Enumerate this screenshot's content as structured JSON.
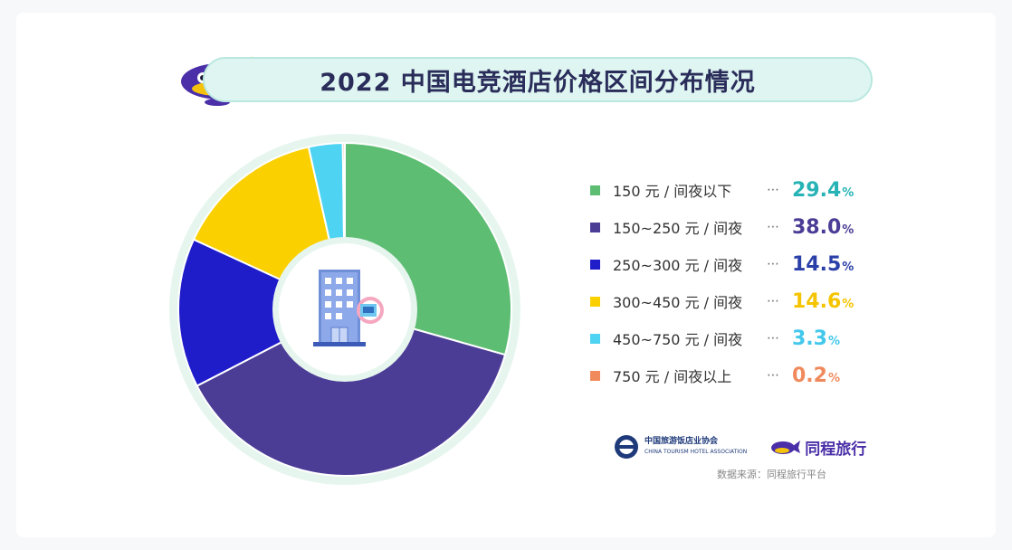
{
  "chart_data": {
    "type": "pie",
    "title": "2022 中国电竞酒店价格区间分布情况",
    "categories": [
      "150 元 / 间夜以下",
      "150~250 元 / 间夜",
      "250~300 元 / 间夜",
      "300~450 元 / 间夜",
      "450~750 元 / 间夜",
      "750 元 / 间夜以上"
    ],
    "values": [
      29.4,
      38.0,
      14.5,
      14.6,
      3.3,
      0.2
    ],
    "value_labels": [
      "29.4",
      "38.0",
      "14.5",
      "14.6",
      "3.3",
      "0.2"
    ],
    "unit": "%",
    "colors": [
      "#5dbd72",
      "#4b3c96",
      "#1f1cc9",
      "#fbd000",
      "#4fd3f2",
      "#f08a5d"
    ],
    "label_colors": [
      "#27b3b5",
      "#4b3c96",
      "#2b3fa8",
      "#f5c400",
      "#43c8ec",
      "#f08a5d"
    ],
    "legend_placement": "right",
    "chart_style": "donut"
  },
  "legend_dots": "⋯",
  "logos": {
    "association_name": "中国旅游饭店业协会",
    "association_sub": "CHINA TOURISM HOTEL ASSOCIATION",
    "brand_name": "同程旅行"
  },
  "source_text": "数据来源：同程旅行平台",
  "icons": {
    "center": "hotel-building-icon",
    "mascot": "whale-mascot-icon"
  }
}
